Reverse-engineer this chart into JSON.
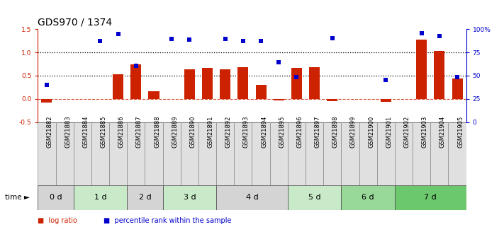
{
  "title": "GDS970 / 1374",
  "samples": [
    "GSM21882",
    "GSM21883",
    "GSM21884",
    "GSM21885",
    "GSM21886",
    "GSM21887",
    "GSM21888",
    "GSM21889",
    "GSM21890",
    "GSM21891",
    "GSM21892",
    "GSM21893",
    "GSM21894",
    "GSM21895",
    "GSM21896",
    "GSM21897",
    "GSM21898",
    "GSM21899",
    "GSM21900",
    "GSM21901",
    "GSM21902",
    "GSM21903",
    "GSM21904",
    "GSM21905"
  ],
  "log_ratio": [
    -0.08,
    0.0,
    0.0,
    0.0,
    0.53,
    0.75,
    0.17,
    0.0,
    0.64,
    0.66,
    0.63,
    0.68,
    0.3,
    -0.03,
    0.67,
    0.68,
    -0.05,
    0.0,
    0.0,
    -0.06,
    0.0,
    1.27,
    1.04,
    0.44
  ],
  "percentile_left_scale": [
    0.3,
    null,
    null,
    1.25,
    1.4,
    0.71,
    null,
    1.3,
    1.28,
    null,
    1.3,
    1.25,
    1.24,
    0.79,
    0.47,
    null,
    1.31,
    null,
    null,
    0.41,
    null,
    1.41,
    1.35,
    0.47
  ],
  "time_groups": [
    {
      "label": "0 d",
      "start": 0,
      "end": 2,
      "color": "#d4d4d4"
    },
    {
      "label": "1 d",
      "start": 2,
      "end": 5,
      "color": "#c8eac8"
    },
    {
      "label": "2 d",
      "start": 5,
      "end": 7,
      "color": "#d4d4d4"
    },
    {
      "label": "3 d",
      "start": 7,
      "end": 10,
      "color": "#c8eac8"
    },
    {
      "label": "4 d",
      "start": 10,
      "end": 14,
      "color": "#d4d4d4"
    },
    {
      "label": "5 d",
      "start": 14,
      "end": 17,
      "color": "#c8eac8"
    },
    {
      "label": "6 d",
      "start": 17,
      "end": 20,
      "color": "#98d898"
    },
    {
      "label": "7 d",
      "start": 20,
      "end": 24,
      "color": "#6cc86c"
    }
  ],
  "sample_bg_color": "#e0e0e0",
  "bar_color": "#cc2200",
  "scatter_color": "#0000cc",
  "ylim_left": [
    -0.5,
    1.5
  ],
  "ylim_right": [
    0,
    100
  ],
  "yticks_left": [
    -0.5,
    0.0,
    0.5,
    1.0,
    1.5
  ],
  "yticks_right": [
    0,
    25,
    50,
    75,
    100
  ],
  "hlines": [
    0.5,
    1.0
  ],
  "zero_line": 0.0,
  "title_fontsize": 10,
  "tick_fontsize": 6.5,
  "sample_fontsize": 6,
  "group_fontsize": 8
}
